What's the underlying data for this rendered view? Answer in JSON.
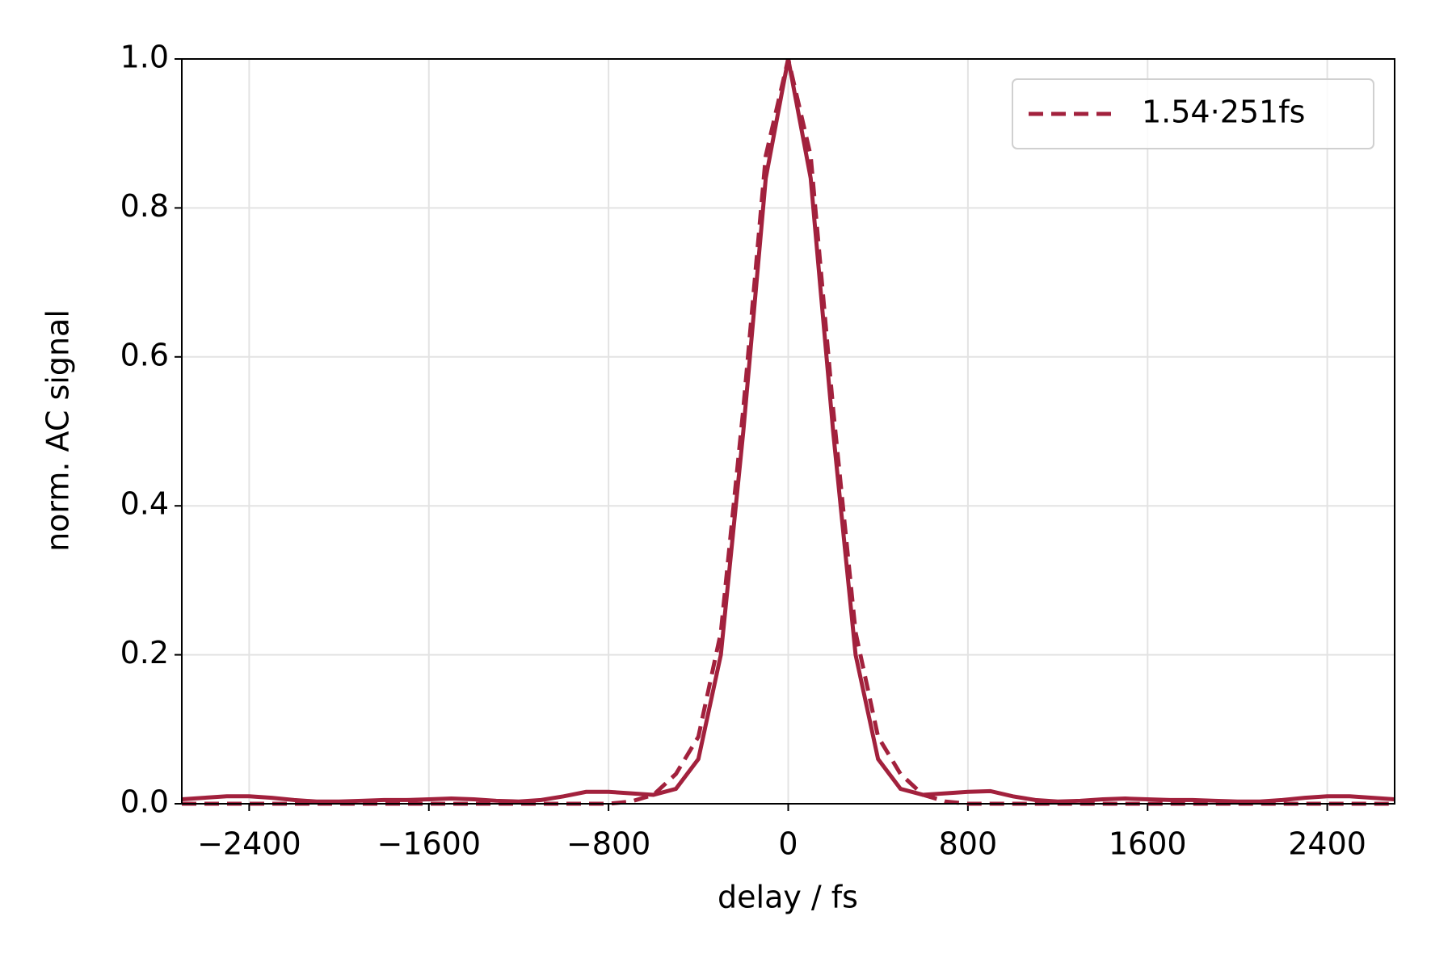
{
  "chart_data": {
    "type": "line",
    "x_label": "delay / fs",
    "y_label": "norm. AC signal",
    "x": [
      -2700,
      -2600,
      -2500,
      -2400,
      -2300,
      -2200,
      -2100,
      -2000,
      -1900,
      -1800,
      -1700,
      -1600,
      -1500,
      -1400,
      -1300,
      -1200,
      -1100,
      -1000,
      -900,
      -800,
      -700,
      -600,
      -500,
      -400,
      -300,
      -200,
      -100,
      0,
      100,
      200,
      300,
      400,
      500,
      600,
      700,
      800,
      900,
      1000,
      1100,
      1200,
      1300,
      1400,
      1500,
      1600,
      1700,
      1800,
      1900,
      2000,
      2100,
      2200,
      2300,
      2400,
      2500,
      2600,
      2700
    ],
    "series": [
      {
        "color": "#a2213d",
        "dashed": false,
        "values": [
          0.006,
          0.008,
          0.01,
          0.01,
          0.008,
          0.005,
          0.003,
          0.003,
          0.004,
          0.005,
          0.005,
          0.006,
          0.007,
          0.006,
          0.004,
          0.003,
          0.005,
          0.01,
          0.016,
          0.016,
          0.014,
          0.012,
          0.02,
          0.06,
          0.2,
          0.5,
          0.84,
          1,
          0.84,
          0.5,
          0.2,
          0.06,
          0.02,
          0.012,
          0.014,
          0.016,
          0.017,
          0.01,
          0.005,
          0.003,
          0.004,
          0.006,
          0.007,
          0.006,
          0.005,
          0.005,
          0.004,
          0.003,
          0.003,
          0.005,
          0.008,
          0.01,
          0.01,
          0.008,
          0.006
        ]
      },
      {
        "name": "1.54·251fs",
        "color": "#a2213d",
        "dashed": true,
        "values": [
          0,
          0,
          0,
          0,
          0,
          0,
          0,
          0,
          0,
          0,
          0,
          0,
          0,
          0,
          0,
          0,
          0,
          0,
          0,
          0,
          0.003,
          0.012,
          0.04,
          0.09,
          0.23,
          0.53,
          0.87,
          1,
          0.87,
          0.53,
          0.23,
          0.09,
          0.04,
          0.012,
          0.003,
          0,
          0,
          0,
          0,
          0,
          0,
          0,
          0,
          0,
          0,
          0,
          0,
          0,
          0,
          0,
          0,
          0,
          0,
          0,
          0
        ]
      }
    ],
    "xlim": [
      -2700,
      2700
    ],
    "xticks": [
      {
        "value": -2400,
        "label": "−2400"
      },
      {
        "value": -1600,
        "label": "−1600"
      },
      {
        "value": -800,
        "label": "−800"
      },
      0,
      800,
      1600,
      2400
    ],
    "ylim": [
      0,
      1
    ],
    "yticks": [
      {
        "value": 0,
        "label": "0.0"
      },
      0.2,
      0.4,
      0.6,
      0.8,
      {
        "value": 1,
        "label": "1.0"
      }
    ],
    "grid": true,
    "legend": "upper right"
  }
}
